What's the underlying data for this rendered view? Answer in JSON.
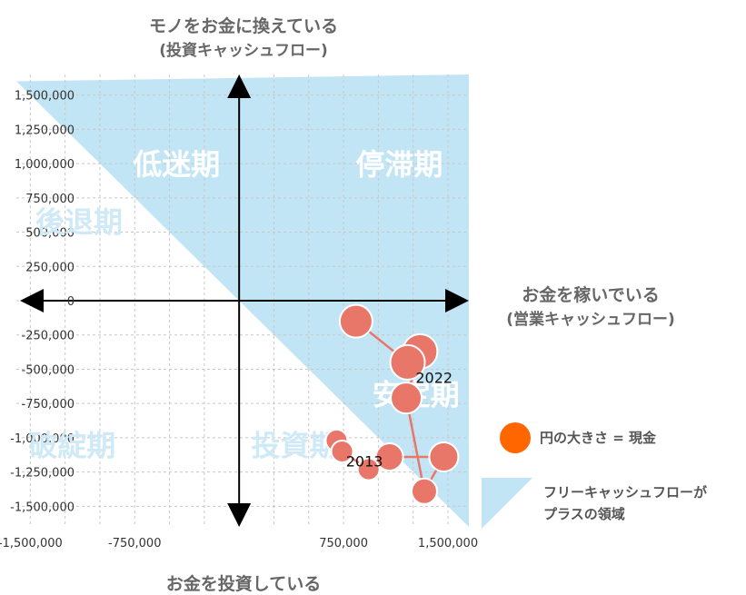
{
  "chart_data": {
    "type": "scatter",
    "x_title": [
      "お金を稼いでいる",
      "(営業キャッシュフロー)"
    ],
    "y_title_top": [
      "モノをお金に換えている",
      "(投資キャッシュフロー)"
    ],
    "y_title_bottom": "お金を投資している",
    "xlim": [
      -1600000,
      1650000
    ],
    "ylim": [
      -1650000,
      1650000
    ],
    "x_tick_labels": [
      {
        "value": -1500000,
        "label": "-1,500,000"
      },
      {
        "value": -750000,
        "label": "-750,000"
      },
      {
        "value": 750000,
        "label": "750,000"
      },
      {
        "value": 1500000,
        "label": "1,500,000"
      }
    ],
    "y_tick_labels": [
      {
        "value": 1500000,
        "label": "1,500,000"
      },
      {
        "value": 1250000,
        "label": "1,250,000"
      },
      {
        "value": 1000000,
        "label": "1,000,000"
      },
      {
        "value": 750000,
        "label": "750,000"
      },
      {
        "value": 500000,
        "label": "500,000"
      },
      {
        "value": 250000,
        "label": "250,000"
      },
      {
        "value": 0,
        "label": "0"
      },
      {
        "value": -250000,
        "label": "-250,000"
      },
      {
        "value": -500000,
        "label": "-500,000"
      },
      {
        "value": -750000,
        "label": "-750,000"
      },
      {
        "value": -1000000,
        "label": "-1,000,000"
      },
      {
        "value": -1250000,
        "label": "-1,250,000"
      },
      {
        "value": -1500000,
        "label": "-1,500,000"
      }
    ],
    "grid": true,
    "region_labels": [
      {
        "text": "低迷期",
        "x": -450000,
        "y": 1000000,
        "color": "#ffffff"
      },
      {
        "text": "停滞期",
        "x": 1150000,
        "y": 1000000,
        "color": "#ffffff"
      },
      {
        "text": "後退期",
        "x": -1150000,
        "y": 580000,
        "color": "#cfe9f6"
      },
      {
        "text": "安定期",
        "x": 1270000,
        "y": -680000,
        "color": "#ffffff"
      },
      {
        "text": "破綻期",
        "x": -1200000,
        "y": -1050000,
        "color": "#cfe9f6"
      },
      {
        "text": "投資期",
        "x": 400000,
        "y": -1050000,
        "color": "#cfe9f6"
      }
    ],
    "points": [
      {
        "x": 700000,
        "y": -1020000,
        "size": 12
      },
      {
        "x": 740000,
        "y": -1100000,
        "size": 12
      },
      {
        "x": 930000,
        "y": -1230000,
        "size": 12
      },
      {
        "x": 1080000,
        "y": -1140000,
        "size": 15
      },
      {
        "x": 1470000,
        "y": -1140000,
        "size": 16
      },
      {
        "x": 1330000,
        "y": -1390000,
        "size": 14
      },
      {
        "x": 1200000,
        "y": -710000,
        "size": 17
      },
      {
        "x": 1300000,
        "y": -370000,
        "size": 19
      },
      {
        "x": 1210000,
        "y": -450000,
        "size": 19
      },
      {
        "x": 840000,
        "y": -150000,
        "size": 18
      }
    ],
    "point_labels": [
      {
        "text": "2013",
        "x": 900000,
        "y": -1170000
      },
      {
        "text": "2022",
        "x": 1400000,
        "y": -560000
      }
    ],
    "legend": [
      {
        "type": "circle",
        "text": "円の大きさ = 現金",
        "color": "#ff6600"
      },
      {
        "type": "region",
        "text": [
          "フリーキャッシュフローが",
          "プラスの領域"
        ],
        "color": "#c2e5f5"
      }
    ],
    "colors": {
      "region": "#c2e5f5",
      "point_fill": "#e8776a",
      "point_stroke": "#ffffff",
      "line": "#e8776a",
      "axis": "#000000",
      "grid": "#c8c8c8"
    }
  }
}
